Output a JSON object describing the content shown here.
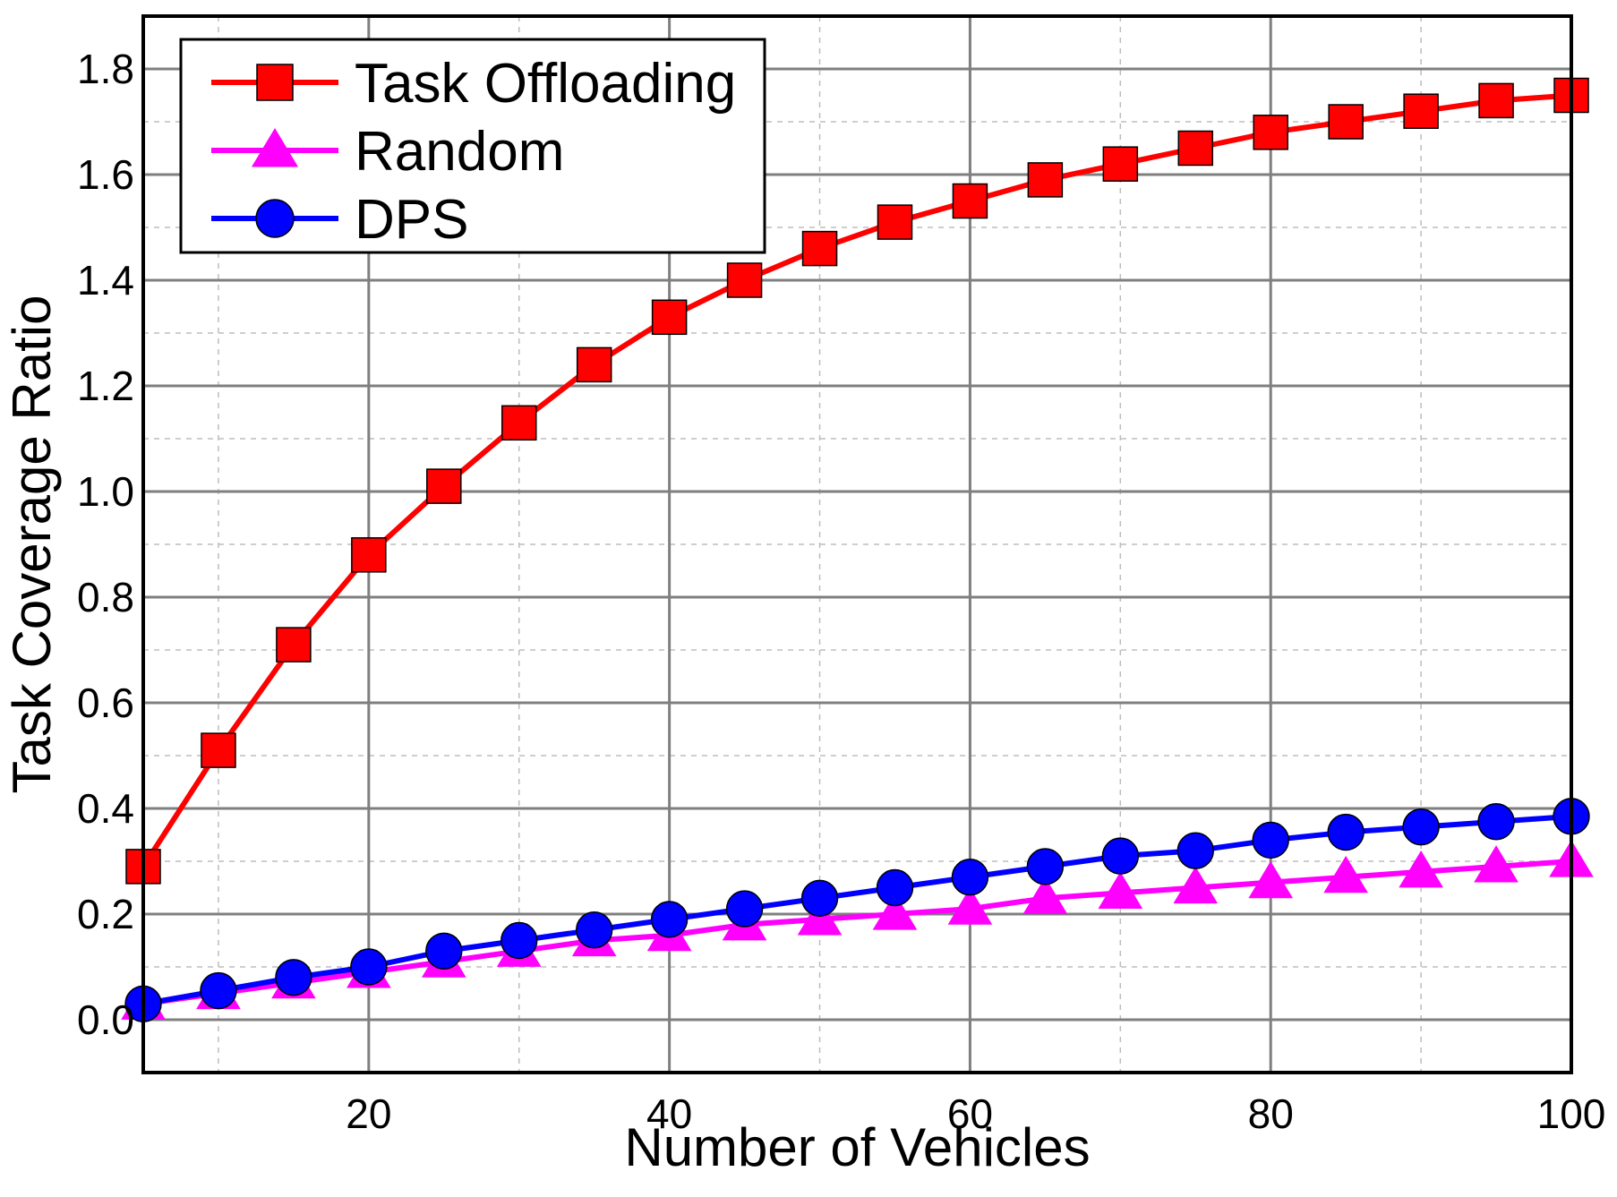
{
  "chart_data": {
    "type": "line",
    "xlabel": "Number of Vehicles",
    "ylabel": "Task Coverage Ratio",
    "xlim": [
      5,
      100
    ],
    "ylim": [
      -0.1,
      1.9
    ],
    "x_ticks": [
      20,
      40,
      60,
      80,
      100
    ],
    "x_tick_labels": [
      "20",
      "40",
      "60",
      "80",
      "100"
    ],
    "x_minor_ticks": [
      10,
      30,
      50,
      70,
      90
    ],
    "y_ticks": [
      0.0,
      0.2,
      0.4,
      0.6,
      0.8,
      1.0,
      1.2,
      1.4,
      1.6,
      1.8
    ],
    "y_tick_labels": [
      "0.0",
      "0.2",
      "0.4",
      "0.6",
      "0.8",
      "1.0",
      "1.2",
      "1.4",
      "1.6",
      "1.8"
    ],
    "y_minor_ticks": [
      -0.1,
      0.1,
      0.3,
      0.5,
      0.7,
      0.9,
      1.1,
      1.3,
      1.5,
      1.7
    ],
    "grid": true,
    "legend_position": "top-left",
    "x": [
      5,
      10,
      15,
      20,
      25,
      30,
      35,
      40,
      45,
      50,
      55,
      60,
      65,
      70,
      75,
      80,
      85,
      90,
      95,
      100
    ],
    "series": [
      {
        "name": "Task Offloading",
        "color": "#ff0000",
        "marker": "square",
        "values": [
          0.29,
          0.51,
          0.71,
          0.88,
          1.01,
          1.13,
          1.24,
          1.33,
          1.4,
          1.46,
          1.51,
          1.55,
          1.59,
          1.62,
          1.65,
          1.68,
          1.7,
          1.72,
          1.74,
          1.75
        ]
      },
      {
        "name": "Random",
        "color": "#ff00ff",
        "marker": "triangle",
        "values": [
          0.03,
          0.05,
          0.07,
          0.09,
          0.11,
          0.13,
          0.15,
          0.16,
          0.18,
          0.19,
          0.2,
          0.21,
          0.23,
          0.24,
          0.25,
          0.26,
          0.27,
          0.28,
          0.29,
          0.3
        ]
      },
      {
        "name": "DPS",
        "color": "#0000ff",
        "marker": "circle",
        "values": [
          0.03,
          0.055,
          0.08,
          0.1,
          0.13,
          0.15,
          0.17,
          0.19,
          0.21,
          0.23,
          0.25,
          0.27,
          0.29,
          0.31,
          0.32,
          0.34,
          0.355,
          0.365,
          0.375,
          0.385
        ]
      }
    ]
  }
}
